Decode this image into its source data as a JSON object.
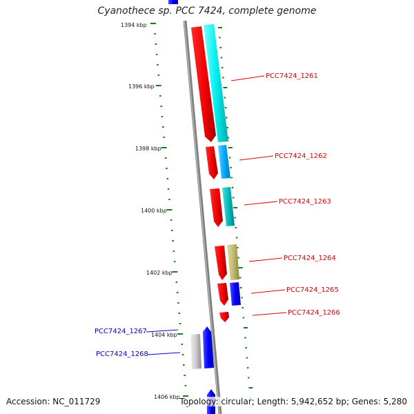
{
  "title": "Cyanothece sp. PCC 7424, complete genome",
  "accession": "Accession: NC_011729",
  "summary": "Topology: circular; Length: 5,942,652 bp; Genes: 5,280",
  "ruler": {
    "labels": [
      "1394 kbp",
      "1396 kbp",
      "1398 kbp",
      "1400 kbp",
      "1402 kbp",
      "1404 kbp",
      "1406 kbp"
    ]
  },
  "genes": [
    {
      "label": "PCC7424_1261",
      "color": "#dd0000"
    },
    {
      "label": "PCC7424_1262",
      "color": "#dd0000"
    },
    {
      "label": "PCC7424_1263",
      "color": "#dd0000"
    },
    {
      "label": "PCC7424_1264",
      "color": "#dd0000"
    },
    {
      "label": "PCC7424_1265",
      "color": "#dd0000"
    },
    {
      "label": "PCC7424_1266",
      "color": "#dd0000"
    },
    {
      "label": "PCC7424_1267",
      "color": "#0000cc"
    },
    {
      "label": "PCC7424_1268",
      "color": "#0000cc"
    }
  ],
  "colors": {
    "backbone": "#808080",
    "ruler": "#1a7a1a",
    "forward_gene": "#ff0000",
    "reverse_gene": "#0000ff",
    "cds_cyan": "#00e5e5",
    "cds_skyblue": "#00aaee",
    "cds_teal": "#00b8b8",
    "cds_khaki": "#bdb76b",
    "cds_gray": "#c0c0c0"
  }
}
